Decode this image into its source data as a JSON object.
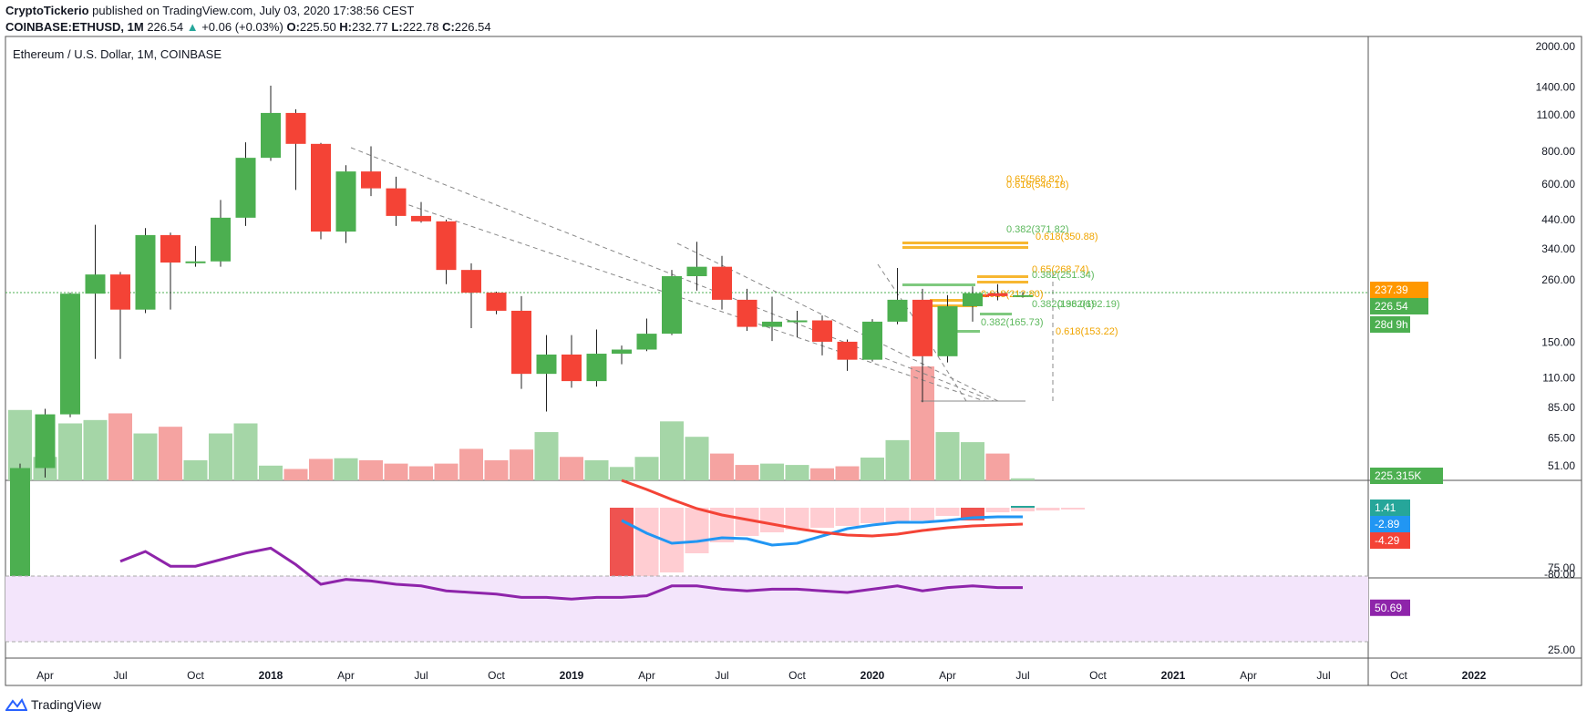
{
  "header": {
    "author": "CryptoTickerio",
    "published_text": "published on TradingView.com, July 03, 2020 17:38:56 CEST",
    "symbol": "COINBASE:ETHUSD, 1M",
    "last": "226.54",
    "arrow": "▲",
    "change": "+0.06 (+0.03%)",
    "o_label": "O:",
    "o": "225.50",
    "h_label": "H:",
    "h": "232.77",
    "l_label": "L:",
    "l": "222.78",
    "c_label": "C:",
    "c": "226.54"
  },
  "footer": {
    "brand": "TradingView"
  },
  "colors": {
    "up": "#4caf50",
    "down": "#f44336",
    "volUp": "#a5d6a7",
    "volDown": "#f5a3a1",
    "fibGreen": "#7fc97f",
    "fibOrange": "#f7b731",
    "macd": "#2196f3",
    "signal": "#f44336",
    "rsi": "#8e24aa"
  },
  "chart_data": {
    "type": "candlestick",
    "title": "Ethereum / U.S. Dollar, 1M, COINBASE",
    "y_scale": "log",
    "price_ticks": [
      "2000.00",
      "1400.00",
      "1100.00",
      "800.00",
      "600.00",
      "440.00",
      "340.00",
      "260.00",
      "150.00",
      "110.00",
      "85.00",
      "65.00",
      "51.00"
    ],
    "x_labels": [
      "Apr",
      "Jul",
      "Oct",
      "2018",
      "Apr",
      "Jul",
      "Oct",
      "2019",
      "Apr",
      "Jul",
      "Oct",
      "2020",
      "Apr",
      "Jul",
      "Oct",
      "2021",
      "Apr",
      "Jul",
      "Oct",
      "2022"
    ],
    "months": [
      "2017-03",
      "2017-04",
      "2017-05",
      "2017-06",
      "2017-07",
      "2017-08",
      "2017-09",
      "2017-10",
      "2017-11",
      "2017-12",
      "2018-01",
      "2018-02",
      "2018-03",
      "2018-04",
      "2018-05",
      "2018-06",
      "2018-07",
      "2018-08",
      "2018-09",
      "2018-10",
      "2018-11",
      "2018-12",
      "2019-01",
      "2019-02",
      "2019-03",
      "2019-04",
      "2019-05",
      "2019-06",
      "2019-07",
      "2019-08",
      "2019-09",
      "2019-10",
      "2019-11",
      "2019-12",
      "2020-01",
      "2020-02",
      "2020-03",
      "2020-04",
      "2020-05",
      "2020-06",
      "2020-07"
    ],
    "ohlc": [
      [
        14,
        52,
        14,
        50
      ],
      [
        50,
        84,
        46,
        80
      ],
      [
        80,
        232,
        78,
        230
      ],
      [
        230,
        420,
        130,
        272
      ],
      [
        272,
        278,
        130,
        200
      ],
      [
        200,
        408,
        194,
        384
      ],
      [
        384,
        392,
        200,
        302
      ],
      [
        302,
        349,
        291,
        305
      ],
      [
        305,
        522,
        291,
        447
      ],
      [
        447,
        865,
        416,
        755
      ],
      [
        755,
        1420,
        735,
        1118
      ],
      [
        1118,
        1155,
        570,
        853
      ],
      [
        853,
        860,
        370,
        396
      ],
      [
        396,
        708,
        358,
        670
      ],
      [
        670,
        835,
        540,
        578
      ],
      [
        578,
        640,
        416,
        454
      ],
      [
        454,
        513,
        428,
        433
      ],
      [
        433,
        440,
        250,
        283
      ],
      [
        283,
        300,
        170,
        232
      ],
      [
        232,
        234,
        192,
        198
      ],
      [
        198,
        225,
        100,
        114
      ],
      [
        114,
        160,
        82,
        135
      ],
      [
        135,
        160,
        101,
        107
      ],
      [
        107,
        168,
        102,
        136
      ],
      [
        136,
        146,
        124,
        141
      ],
      [
        141,
        185,
        139,
        162
      ],
      [
        162,
        283,
        160,
        268
      ],
      [
        268,
        362,
        236,
        291
      ],
      [
        291,
        320,
        200,
        218
      ],
      [
        218,
        240,
        166,
        172
      ],
      [
        172,
        224,
        152,
        180
      ],
      [
        180,
        198,
        157,
        182
      ],
      [
        182,
        190,
        134,
        151
      ],
      [
        151,
        154,
        117,
        129
      ],
      [
        129,
        184,
        127,
        180
      ],
      [
        180,
        288,
        176,
        218
      ],
      [
        218,
        240,
        89,
        133
      ],
      [
        133,
        227,
        126,
        206
      ],
      [
        206,
        245,
        180,
        231
      ],
      [
        231,
        250,
        217,
        225
      ],
      [
        225,
        233,
        222,
        227
      ]
    ],
    "volume": [
      105,
      35,
      85,
      90,
      100,
      70,
      80,
      30,
      70,
      85,
      22,
      17,
      32,
      33,
      30,
      25,
      21,
      25,
      47,
      30,
      46,
      72,
      35,
      30,
      20,
      35,
      88,
      65,
      40,
      23,
      25,
      23,
      18,
      21,
      34,
      60,
      170,
      72,
      57,
      40,
      3
    ],
    "current_price": "226.54",
    "price_marker": "237.39",
    "countdown": "28d 9h",
    "volume_label": "225.315K",
    "fib_labels": [
      {
        "text": "0.618(546.18)",
        "color": "orange"
      },
      {
        "text": "0.65(568.82)",
        "color": "orange"
      },
      {
        "text": "0.382(371.82)",
        "color": "green"
      },
      {
        "text": "0.618(350.88)",
        "color": "orange"
      },
      {
        "text": "0.65(268.74)",
        "color": "orange"
      },
      {
        "text": "0.382(251.34)",
        "color": "green"
      },
      {
        "text": "0.618(212.80)",
        "color": "orange"
      },
      {
        "text": "0.382(196.06)",
        "color": "green"
      },
      {
        "text": "0.382(192.19)",
        "color": "green"
      },
      {
        "text": "0.382(165.73)",
        "color": "green"
      },
      {
        "text": "0.618(153.22)",
        "color": "orange"
      }
    ],
    "macd": {
      "labels": [
        "1.41",
        "-2.89",
        "-4.29",
        "-80.00"
      ],
      "macd_line": [
        -14,
        -28,
        -39,
        -37,
        -33,
        -34,
        -41,
        -39,
        -31,
        -23,
        -19,
        -16,
        -16,
        -14,
        -11,
        -10,
        -10
      ],
      "signal_line": [
        30,
        20,
        9,
        -1,
        -8,
        -13,
        -18,
        -23,
        -27,
        -30,
        -31,
        -29,
        -25,
        -22,
        -20,
        -19,
        -18
      ],
      "histogram": [
        -84,
        -84,
        -71,
        -50,
        -38,
        -31,
        -27,
        -24,
        -22,
        -20,
        -17,
        -16,
        -14,
        -9,
        -6,
        -5,
        -4,
        -3,
        -2
      ]
    },
    "rsi": {
      "labels": [
        "75.00",
        "50.69",
        "25.00"
      ],
      "values": [
        79,
        85,
        76,
        76,
        80,
        84,
        87,
        77,
        65,
        68,
        67,
        65,
        64,
        61,
        60,
        59,
        57,
        57,
        56,
        57,
        57,
        58,
        64,
        64,
        62,
        61,
        62,
        62,
        61,
        60,
        62,
        64,
        61,
        63,
        64,
        63,
        63
      ]
    }
  }
}
